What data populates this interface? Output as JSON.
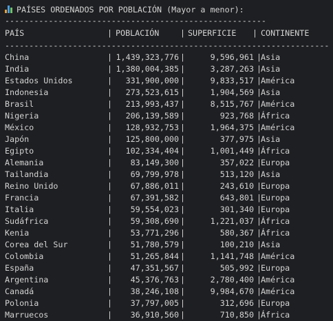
{
  "title": "PAÍSES ORDENADOS POR POBLACIÓN (Mayor a menor):",
  "dash_short": "------------------------------------------------------",
  "dash_long": "-------------------------------------------------------------------",
  "headers": {
    "country": "PAÍS",
    "sep": "|",
    "population": "POBLACIÓN",
    "area": "SUPERFICIE",
    "continent": "CONTINENTE"
  },
  "rows": [
    {
      "name": "China",
      "population": "1,439,323,776",
      "area": "9,596,961",
      "continent": "Asia"
    },
    {
      "name": "India",
      "population": "1,380,004,385",
      "area": "3,287,263",
      "continent": "Asia"
    },
    {
      "name": "Estados Unidos",
      "population": "331,900,000",
      "area": "9,833,517",
      "continent": "América"
    },
    {
      "name": "Indonesia",
      "population": "273,523,615",
      "area": "1,904,569",
      "continent": "Asia"
    },
    {
      "name": "Brasil",
      "population": "213,993,437",
      "area": "8,515,767",
      "continent": "América"
    },
    {
      "name": "Nigeria",
      "population": "206,139,589",
      "area": "923,768",
      "continent": "África"
    },
    {
      "name": "México",
      "population": "128,932,753",
      "area": "1,964,375",
      "continent": "América"
    },
    {
      "name": "Japón",
      "population": "125,800,000",
      "area": "377,975",
      "continent": "Asia"
    },
    {
      "name": "Egipto",
      "population": "102,334,404",
      "area": "1,001,449",
      "continent": "África"
    },
    {
      "name": "Alemania",
      "population": "83,149,300",
      "area": "357,022",
      "continent": "Europa"
    },
    {
      "name": "Tailandia",
      "population": "69,799,978",
      "area": "513,120",
      "continent": "Asia"
    },
    {
      "name": "Reino Unido",
      "population": "67,886,011",
      "area": "243,610",
      "continent": "Europa"
    },
    {
      "name": "Francia",
      "population": "67,391,582",
      "area": "643,801",
      "continent": "Europa"
    },
    {
      "name": "Italia",
      "population": "59,554,023",
      "area": "301,340",
      "continent": "Europa"
    },
    {
      "name": "Sudáfrica",
      "population": "59,308,690",
      "area": "1,221,037",
      "continent": "África"
    },
    {
      "name": "Kenia",
      "population": "53,771,296",
      "area": "580,367",
      "continent": "África"
    },
    {
      "name": "Corea del Sur",
      "population": "51,780,579",
      "area": "100,210",
      "continent": "Asia"
    },
    {
      "name": "Colombia",
      "population": "51,265,844",
      "area": "1,141,748",
      "continent": "América"
    },
    {
      "name": "España",
      "population": "47,351,567",
      "area": "505,992",
      "continent": "Europa"
    },
    {
      "name": "Argentina",
      "population": "45,376,763",
      "area": "2,780,400",
      "continent": "América"
    },
    {
      "name": "Canadá",
      "population": "38,246,108",
      "area": "9,984,670",
      "continent": "América"
    },
    {
      "name": "Polonia",
      "population": "37,797,005",
      "area": "312,696",
      "continent": "Europa"
    },
    {
      "name": "Marruecos",
      "population": "36,910,560",
      "area": "710,850",
      "continent": "África"
    }
  ]
}
